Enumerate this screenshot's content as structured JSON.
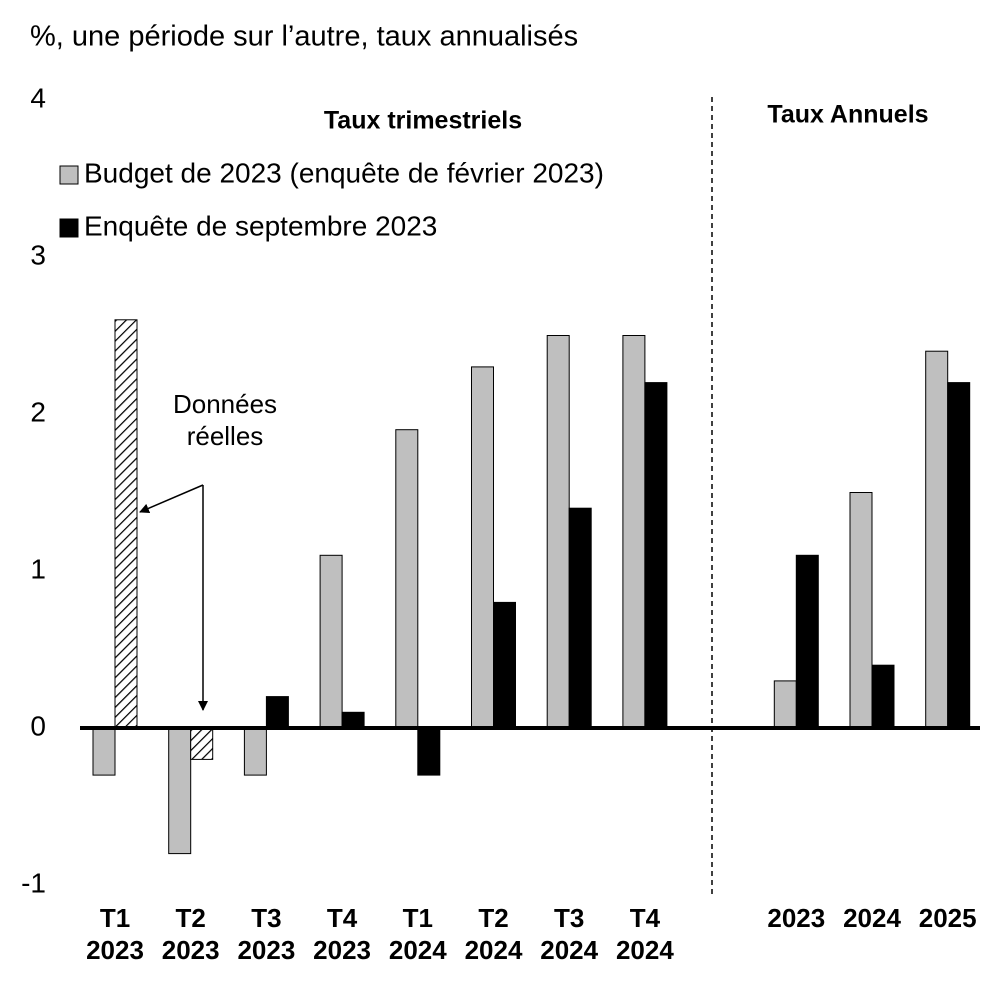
{
  "chart_data": {
    "type": "bar",
    "title": "%, une période sur l’autre, taux annualisés",
    "section_labels": [
      "Taux trimestriels",
      "Taux Annuels"
    ],
    "annotation": "Données\nréelles",
    "categories": [
      "T1\n2023",
      "T2\n2023",
      "T3\n2023",
      "T4\n2023",
      "T1\n2024",
      "T2\n2024",
      "T3\n2024",
      "T4\n2024",
      null,
      "2023",
      "2024",
      "2025"
    ],
    "series": [
      {
        "name": "Budget de 2023 (enquête de février 2023)",
        "color": "#bfbfbf",
        "values": [
          -0.3,
          -0.8,
          -0.3,
          1.1,
          1.9,
          2.3,
          2.5,
          2.5,
          null,
          0.3,
          1.5,
          2.4
        ]
      },
      {
        "name": "Enquête de septembre 2023",
        "color": "#000000",
        "actual_data_indices": [
          0,
          1
        ],
        "values": [
          2.6,
          -0.2,
          0.2,
          0.1,
          -0.3,
          0.8,
          1.4,
          2.2,
          null,
          1.1,
          0.4,
          2.2
        ]
      }
    ],
    "ylim": [
      -1,
      4
    ],
    "yticks": [
      -1,
      0,
      1,
      2,
      3,
      4
    ],
    "grid": false
  }
}
